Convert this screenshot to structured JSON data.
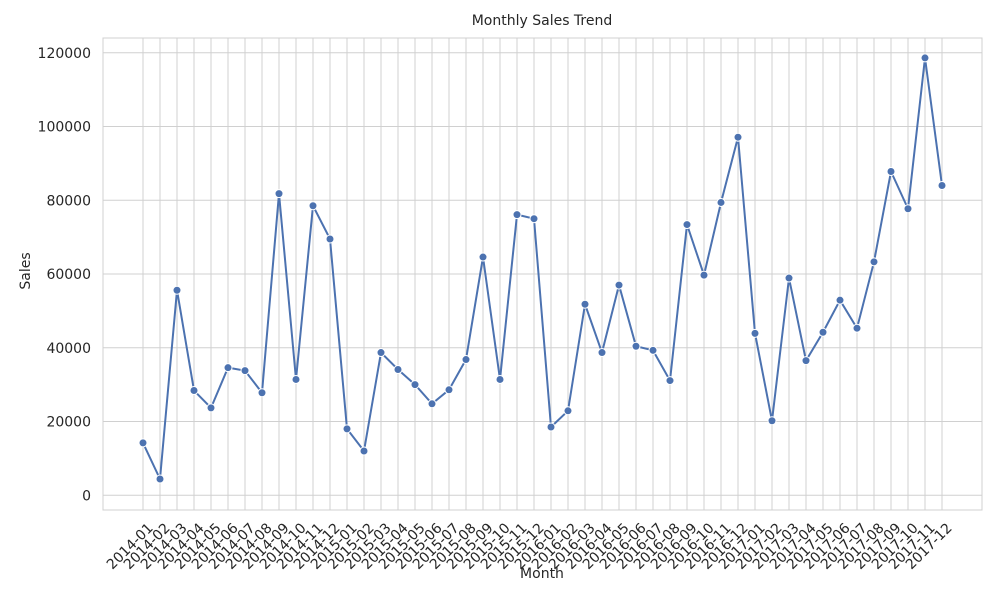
{
  "chart_data": {
    "type": "line",
    "title": "Monthly Sales Trend",
    "x_label": "Month",
    "y_label": "Sales",
    "categories": [
      "2014-01",
      "2014-02",
      "2014-03",
      "2014-04",
      "2014-05",
      "2014-06",
      "2014-07",
      "2014-08",
      "2014-09",
      "2014-10",
      "2014-11",
      "2014-12",
      "2015-01",
      "2015-02",
      "2015-03",
      "2015-04",
      "2015-05",
      "2015-06",
      "2015-07",
      "2015-08",
      "2015-09",
      "2015-10",
      "2015-11",
      "2015-12",
      "2016-01",
      "2016-02",
      "2016-03",
      "2016-04",
      "2016-05",
      "2016-06",
      "2016-07",
      "2016-08",
      "2016-09",
      "2016-10",
      "2016-11",
      "2016-12",
      "2017-01",
      "2017-02",
      "2017-03",
      "2017-04",
      "2017-05",
      "2017-06",
      "2017-07",
      "2017-08",
      "2017-09",
      "2017-10",
      "2017-11",
      "2017-12"
    ],
    "series": [
      {
        "name": "Sales",
        "color": "#4c72b0",
        "values": [
          14200,
          4400,
          55600,
          28400,
          23700,
          34600,
          33800,
          27800,
          81800,
          31400,
          78500,
          69500,
          18000,
          12000,
          38700,
          34100,
          30000,
          24800,
          28600,
          36800,
          64600,
          31400,
          76100,
          75000,
          18500,
          22900,
          51800,
          38700,
          57000,
          40400,
          39300,
          31100,
          73400,
          59700,
          79400,
          97100,
          43900,
          20200,
          58900,
          36500,
          44200,
          52900,
          45300,
          63300,
          87800,
          77700,
          118600,
          84000
        ]
      }
    ],
    "ylim": [
      -4000,
      124000
    ],
    "yticks": [
      0,
      20000,
      40000,
      60000,
      80000,
      100000,
      120000
    ],
    "grid": true
  }
}
